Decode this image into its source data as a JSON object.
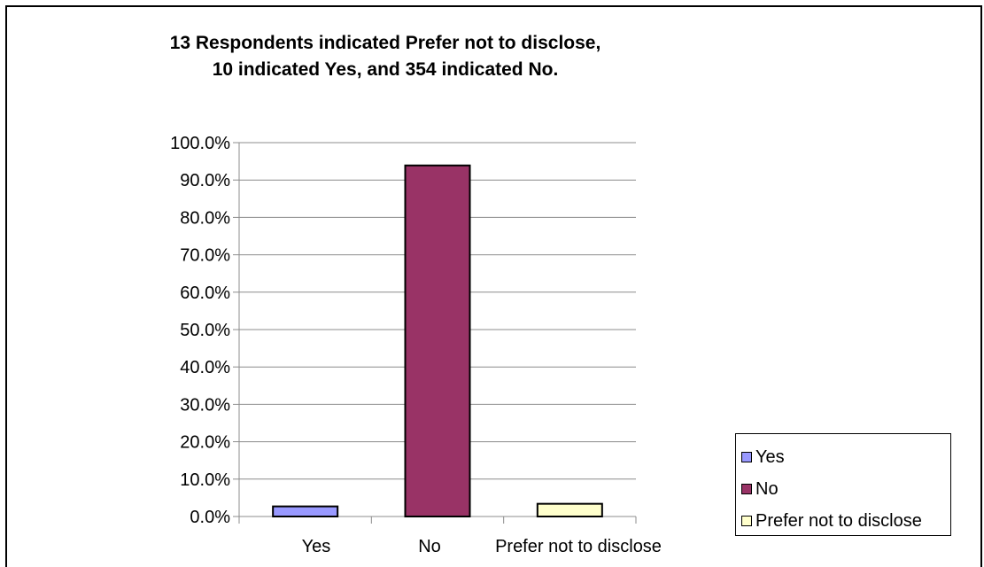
{
  "chart_data": {
    "type": "bar",
    "title_lines": [
      "13 Respondents indicated Prefer not to disclose,",
      "10 indicated Yes, and 354 indicated No."
    ],
    "categories": [
      "Yes",
      "No",
      "Prefer not to disclose"
    ],
    "values": [
      2.7,
      93.9,
      3.4
    ],
    "colors": [
      "#9999ff",
      "#993366",
      "#ffffcc"
    ],
    "ylim": [
      0,
      100
    ],
    "yticks": [
      "0.0%",
      "10.0%",
      "20.0%",
      "30.0%",
      "40.0%",
      "50.0%",
      "60.0%",
      "70.0%",
      "80.0%",
      "90.0%",
      "100.0%"
    ],
    "grid": true,
    "legend_position": "right"
  }
}
